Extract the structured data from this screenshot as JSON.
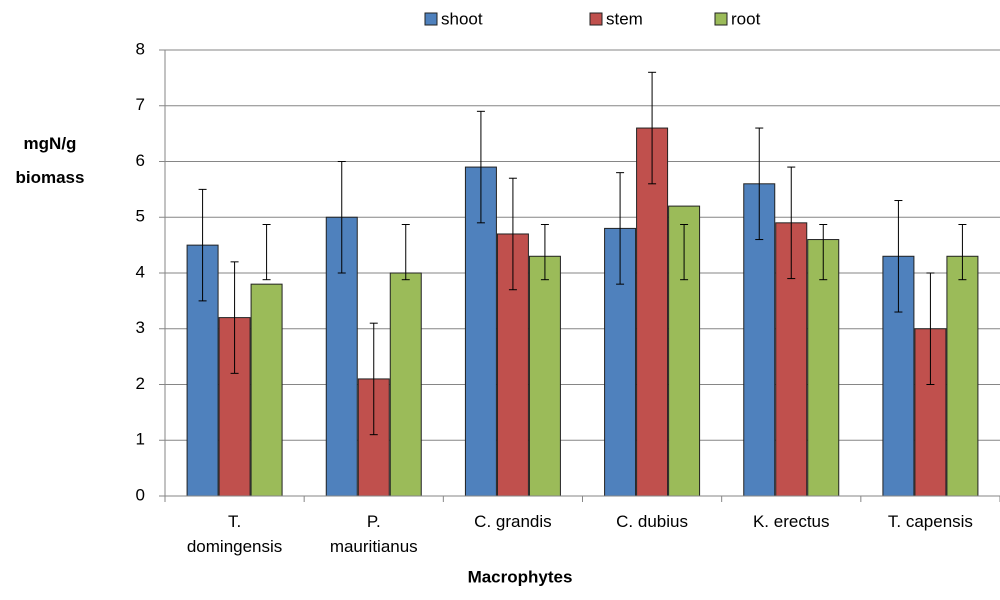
{
  "chart_data": {
    "type": "bar",
    "x_label": "Macrophytes",
    "y_label": "mgN/g\nbiomass",
    "categories": [
      "T.\ndomingensis",
      "P.\nmauritianus",
      "C. grandis",
      "C. dubius",
      "K. erectus",
      "T. capensis"
    ],
    "series": [
      {
        "name": "shoot",
        "color": "#4f81bd",
        "values": [
          4.5,
          5.0,
          5.9,
          4.8,
          5.6,
          4.3
        ],
        "error_low": [
          3.5,
          4.0,
          4.9,
          3.8,
          4.6,
          3.3
        ],
        "error_high": [
          5.5,
          6.0,
          6.9,
          5.8,
          6.6,
          5.3
        ]
      },
      {
        "name": "stem",
        "color": "#c0504d",
        "values": [
          3.2,
          2.1,
          4.7,
          6.6,
          4.9,
          3.0
        ],
        "error_low": [
          2.2,
          1.1,
          3.7,
          5.6,
          3.9,
          2.0
        ],
        "error_high": [
          4.2,
          3.1,
          5.7,
          7.6,
          5.9,
          4.0
        ]
      },
      {
        "name": "root",
        "color": "#9bbb59",
        "values": [
          3.8,
          4.0,
          4.3,
          5.2,
          4.6,
          4.3
        ],
        "error_low": [
          3.88,
          3.88,
          3.88,
          3.88,
          3.88,
          3.88
        ],
        "error_high": [
          4.87,
          4.87,
          4.87,
          4.87,
          4.87,
          4.87
        ]
      }
    ],
    "ylim": [
      0,
      8
    ],
    "yticks": [
      0,
      1,
      2,
      3,
      4,
      5,
      6,
      7,
      8
    ],
    "grid": true,
    "legend": "top"
  }
}
